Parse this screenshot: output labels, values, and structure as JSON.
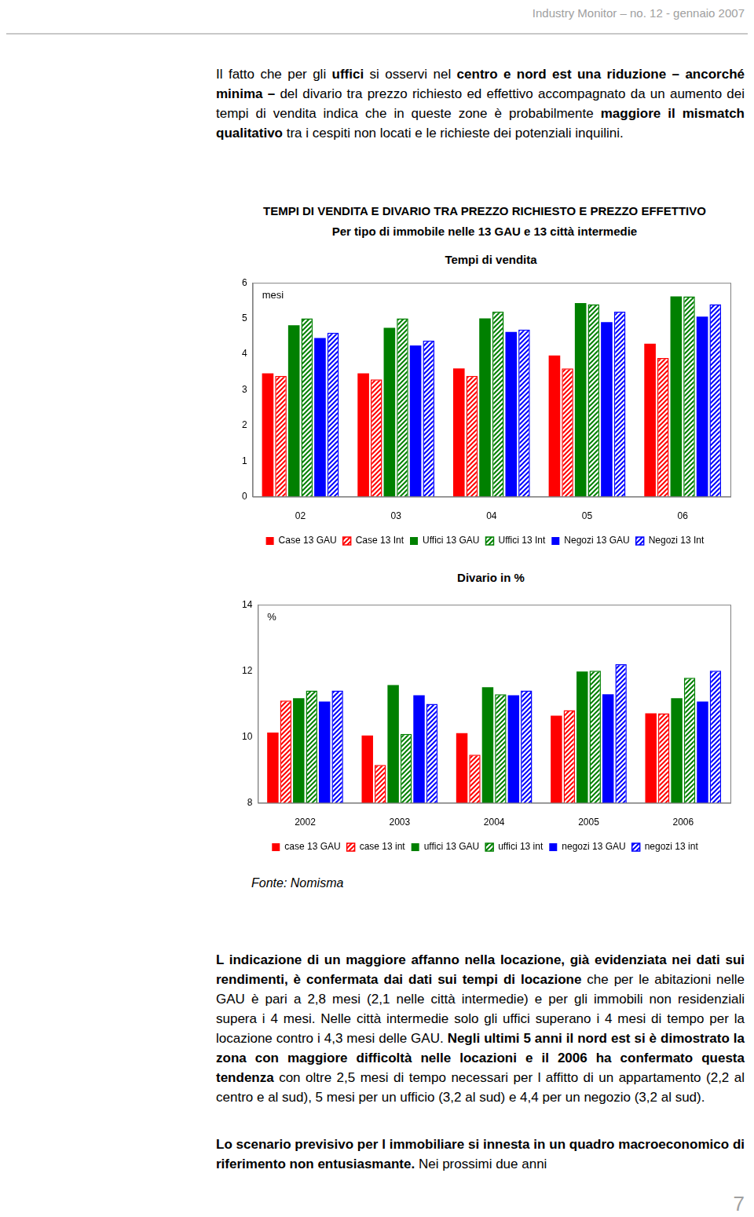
{
  "header": "Industry Monitor – no. 12 - gennaio 2007",
  "intro": [
    {
      "text": "Il fatto che per gli "
    },
    {
      "text": "uffici",
      "bold": true
    },
    {
      "text": " si osservi nel "
    },
    {
      "text": "centro e nord est una riduzione – ancorché minima –",
      "bold": true
    },
    {
      "text": " del divario tra prezzo richiesto ed effettivo accompagnato da un aumento dei tempi di vendita indica che in queste zone è probabilmente "
    },
    {
      "text": "maggiore il mismatch qualitativo",
      "bold": true
    },
    {
      "text": " tra i cespiti non locati e le richieste dei potenziali inquilini."
    }
  ],
  "figure": {
    "title": "TEMPI DI VENDITA E DIVARIO TRA PREZZO RICHIESTO E PREZZO EFFETTIVO",
    "subtitle": "Per tipo di immobile nelle 13 GAU e 13 città intermedie",
    "source": "Fonte: Nomisma"
  },
  "chart_data": [
    {
      "type": "bar",
      "title": "Tempi di vendita",
      "ylabel": "mesi",
      "categories": [
        "02",
        "03",
        "04",
        "05",
        "06"
      ],
      "series": [
        {
          "name": "Case 13 GAU",
          "color": "#ff0000",
          "values": [
            3.46,
            3.46,
            3.6,
            3.96,
            4.29
          ]
        },
        {
          "name": "Case 13 Int",
          "color": "#ff0000",
          "values": [
            3.39,
            3.29,
            3.39,
            3.6,
            3.89
          ]
        },
        {
          "name": "Uffici 13 GAU",
          "color": "#008000",
          "values": [
            4.81,
            4.74,
            5.0,
            5.43,
            5.62
          ]
        },
        {
          "name": "Uffici 13 Int",
          "color": "#008000",
          "values": [
            5.0,
            5.0,
            5.19,
            5.4,
            5.62
          ]
        },
        {
          "name": "Negozi 13 GAU",
          "color": "#0000ff",
          "values": [
            4.45,
            4.24,
            4.62,
            4.9,
            5.05
          ]
        },
        {
          "name": "Negozi 13 Int",
          "color": "#0000ff",
          "values": [
            4.6,
            4.38,
            4.69,
            5.19,
            5.4
          ]
        }
      ],
      "ylim": [
        0,
        6
      ],
      "yticks": [
        0,
        1,
        2,
        3,
        4,
        5,
        6
      ],
      "grid": false,
      "legend": "bottom"
    },
    {
      "type": "bar",
      "title": "Divario in %",
      "ylabel": "%",
      "categories": [
        "2002",
        "2003",
        "2004",
        "2005",
        "2006"
      ],
      "series": [
        {
          "name": "case 13 GAU",
          "color": "#ff0000",
          "values": [
            10.13,
            10.04,
            10.11,
            10.64,
            10.71
          ]
        },
        {
          "name": "case 13 int",
          "color": "#ff0000",
          "values": [
            11.1,
            9.15,
            9.46,
            10.81,
            10.71
          ]
        },
        {
          "name": "uffici 13 GAU",
          "color": "#008000",
          "values": [
            11.17,
            11.57,
            11.5,
            11.98,
            11.17
          ]
        },
        {
          "name": "uffici 13 int",
          "color": "#008000",
          "values": [
            11.4,
            10.09,
            11.29,
            12.0,
            11.79
          ]
        },
        {
          "name": "negozi 13 GAU",
          "color": "#0000ff",
          "values": [
            11.07,
            11.26,
            11.26,
            11.29,
            11.07
          ]
        },
        {
          "name": "negozi 13 int",
          "color": "#0000ff",
          "values": [
            11.4,
            11.0,
            11.4,
            12.2,
            12.0
          ]
        }
      ],
      "ylim": [
        8,
        14
      ],
      "yticks": [
        8,
        10,
        12,
        14
      ],
      "grid": false,
      "legend": "bottom"
    }
  ],
  "body": [
    [
      {
        "text": "L indicazione di un maggiore affanno nella locazione, già evidenziata nei dati sui rendimenti, è confermata dai dati sui tempi di locazione",
        "bold": true
      },
      {
        "text": " che per le abitazioni nelle GAU è pari a 2,8 mesi (2,1 nelle città intermedie) e per gli immobili non residenziali supera i 4 mesi. Nelle città intermedie solo gli uffici superano i 4 mesi di tempo per la locazione contro i 4,3 mesi delle GAU. "
      },
      {
        "text": "Negli ultimi 5 anni il nord est si è dimostrato la zona con maggiore difficoltà nelle locazioni e il 2006 ha confermato questa tendenza",
        "bold": true
      },
      {
        "text": " con oltre 2,5 mesi di tempo necessari per l affitto di un appartamento (2,2 al centro e al sud), 5 mesi per un ufficio (3,2 al sud) e 4,4 per un negozio (3,2 al sud)."
      }
    ],
    [
      {
        "text": "Lo scenario previsivo per l immobiliare si innesta in un quadro macroeconomico di riferimento non entusiasmante.",
        "bold": true
      },
      {
        "text": " Nei prossimi due anni"
      }
    ]
  ],
  "page_number": 7
}
